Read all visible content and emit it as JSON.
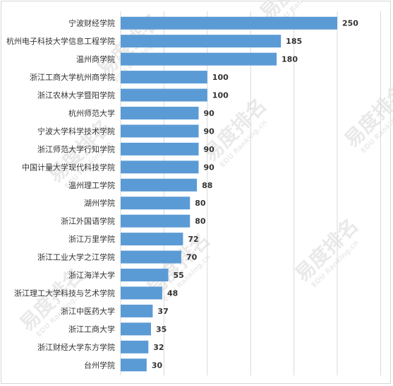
{
  "chart_data": {
    "type": "bar",
    "orientation": "horizontal",
    "categories": [
      "宁波财经学院",
      "杭州电子科技大学信息工程学院",
      "温州商学院",
      "浙江工商大学杭州商学院",
      "浙江农林大学暨阳学院",
      "杭州师范大学",
      "宁波大学科学技术学院",
      "浙江师范大学行知学院",
      "中国计量大学现代科技学院",
      "温州理工学院",
      "湖州学院",
      "浙江外国语学院",
      "浙江万里学院",
      "浙江工业大学之江学院",
      "浙江海洋大学",
      "浙江理工大学科技与艺术学院",
      "浙江中医药大学",
      "浙江工商大学",
      "浙江财经大学东方学院",
      "台州学院"
    ],
    "values": [
      250,
      185,
      180,
      100,
      100,
      90,
      90,
      90,
      90,
      88,
      80,
      80,
      72,
      70,
      55,
      48,
      37,
      35,
      32,
      30
    ],
    "value_labels": [
      "250",
      "185",
      "180",
      "100",
      "100",
      "90",
      "90",
      "90",
      "90",
      "88",
      "80",
      "80",
      "72",
      "70",
      "55",
      "48",
      "37",
      "35",
      "32",
      "30"
    ],
    "xlim": [
      0,
      250
    ],
    "gridlines": true,
    "bar_color": "#5b9bd5",
    "grid_color": "#d9d9d9",
    "title": "",
    "xlabel": "",
    "ylabel": ""
  },
  "watermark": {
    "main": "易度排名",
    "sub": "EDU Ranking.cn",
    "color": "#e9e9e9"
  }
}
